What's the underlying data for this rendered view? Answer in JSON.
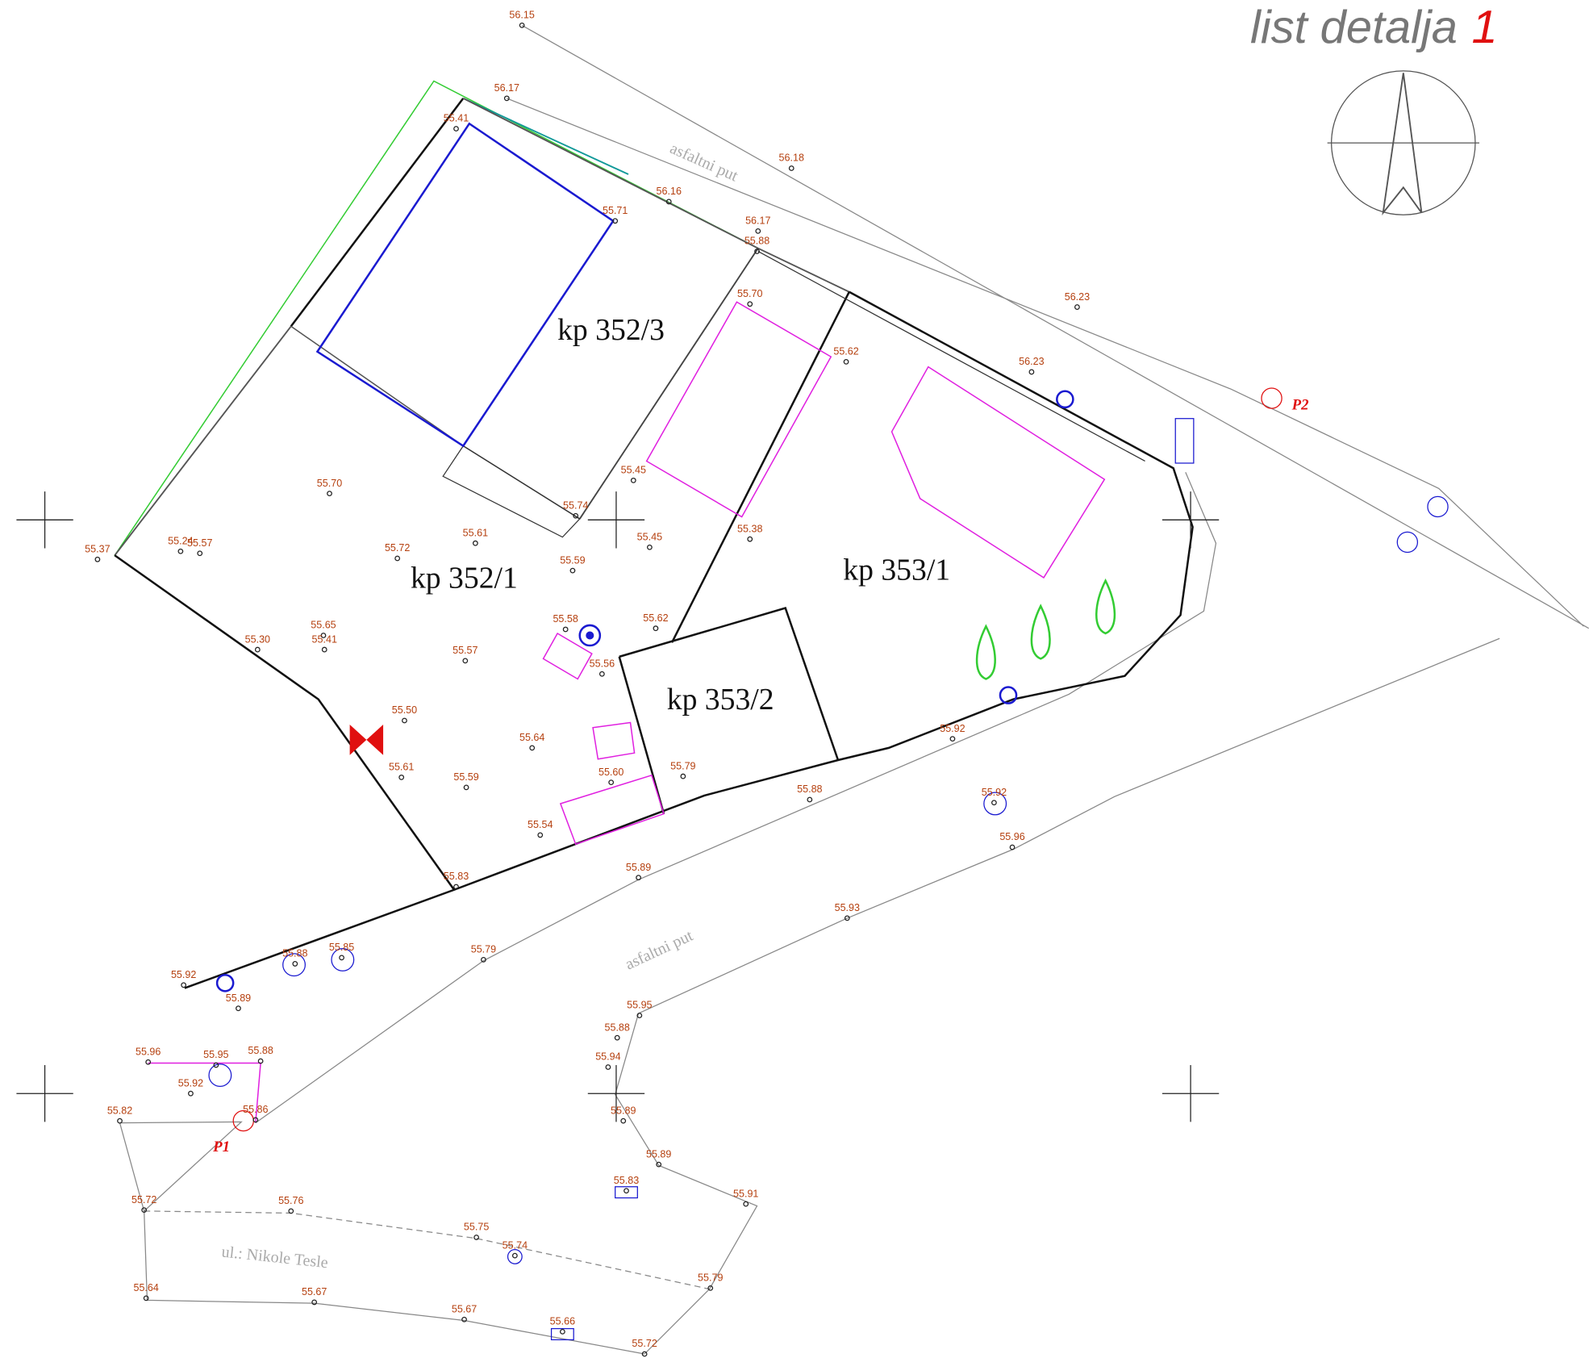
{
  "header": {
    "title": "list detalja",
    "sheet_number": "1"
  },
  "parcels": [
    "kp 352/3",
    "kp 352/1",
    "kp 353/1",
    "kp 353/2"
  ],
  "roads": [
    "asfaltni put",
    "asfaltni put",
    "ul.: Nikole Tesle"
  ],
  "benchmarks": [
    "P1",
    "P2"
  ],
  "elevations": [
    "56.15",
    "56.17",
    "56.18",
    "55.41",
    "55.71",
    "56.16",
    "56.17",
    "55.88",
    "55.70",
    "55.62",
    "56.23",
    "56.23",
    "55.45",
    "55.74",
    "55.38",
    "55.61",
    "55.45",
    "55.70",
    "55.37",
    "55.24",
    "55.57",
    "55.72",
    "55.59",
    "55.58",
    "55.62",
    "55.65",
    "55.41",
    "55.30",
    "55.57",
    "55.56",
    "55.50",
    "55.64",
    "55.92",
    "55.79",
    "55.61",
    "55.59",
    "55.60",
    "55.88",
    "55.54",
    "55.92",
    "55.96",
    "55.89",
    "55.83",
    "55.93",
    "55.79",
    "55.88",
    "55.85",
    "55.92",
    "55.89",
    "55.95",
    "55.88",
    "55.94",
    "55.96",
    "55.95",
    "55.88",
    "55.92",
    "55.82",
    "55.86",
    "55.89",
    "55.89",
    "55.83",
    "55.91",
    "55.72",
    "55.76",
    "55.75",
    "55.74",
    "55.79",
    "55.64",
    "55.67",
    "55.67",
    "55.66",
    "55.72"
  ]
}
